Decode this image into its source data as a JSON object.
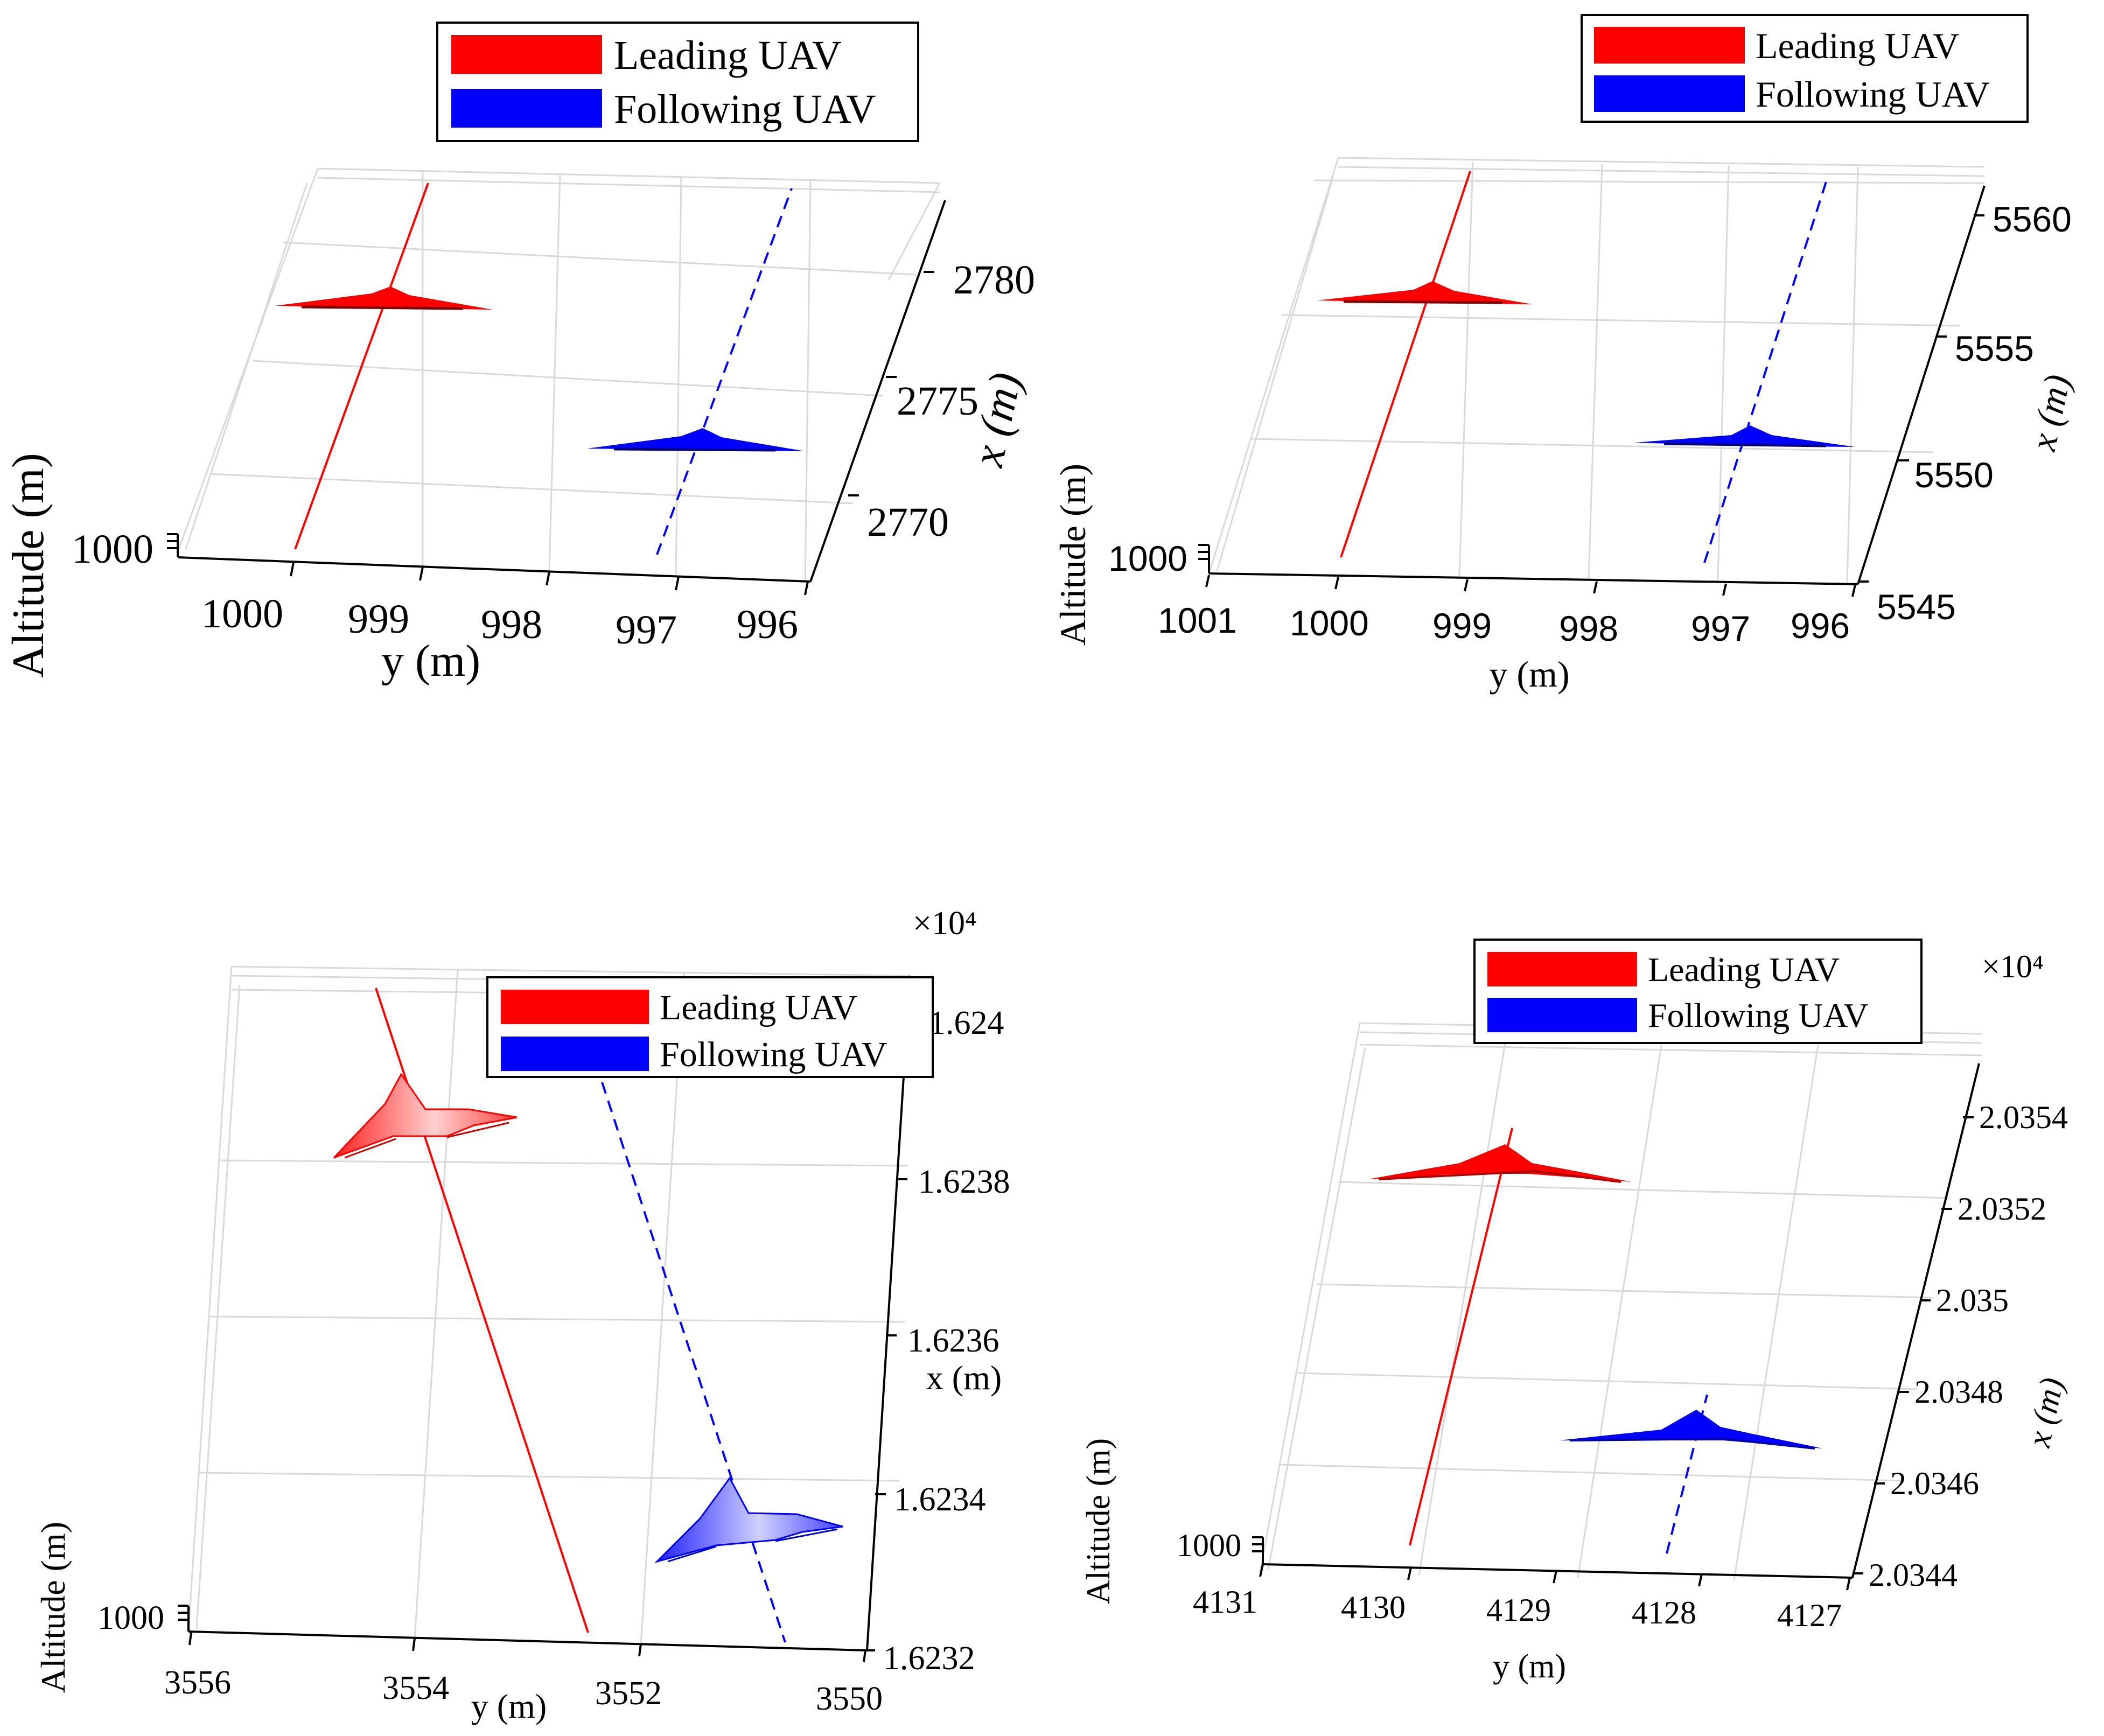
{
  "colors": {
    "lead": "#ff0000",
    "follow": "#0000ff",
    "grid": "#d9d9d9",
    "axis": "#000000"
  },
  "chart_data": [
    {
      "type": "line",
      "view": "3d",
      "legend": {
        "placement": "top",
        "entries": [
          "Leading UAV",
          "Following UAV"
        ]
      },
      "xlabel": "y (m)",
      "ylabel": "x (m)",
      "zlabel": "Altitude (m)",
      "y_ticks": [
        "1000",
        "999",
        "998",
        "997",
        "996"
      ],
      "x_ticks": [
        "2770",
        "2775",
        "2780"
      ],
      "z_ticks": [
        "1000"
      ],
      "x_multiplier": "",
      "series": [
        {
          "name": "Leading UAV",
          "style": "solid",
          "color": "#ff0000",
          "y": [
            999.05,
            998.05
          ],
          "x": [
            2768.5,
            2784.5
          ],
          "z": [
            1000,
            1000
          ],
          "uav_at": {
            "y": 998.73,
            "x": 2779.0
          }
        },
        {
          "name": "Following UAV",
          "style": "dashed",
          "color": "#0000ff",
          "y": [
            996.95,
            995.95
          ],
          "x": [
            2768.5,
            2784.5
          ],
          "z": [
            1000,
            1000
          ],
          "uav_at": {
            "y": 996.76,
            "x": 2773.6
          }
        }
      ]
    },
    {
      "type": "line",
      "view": "3d",
      "legend": {
        "placement": "top-right",
        "entries": [
          "Leading UAV",
          "Following UAV"
        ]
      },
      "xlabel": "y (m)",
      "ylabel": "x (m)",
      "zlabel": "Altitude (m)",
      "y_ticks": [
        "1001",
        "1000",
        "999",
        "998",
        "997",
        "996"
      ],
      "x_ticks": [
        "5545",
        "5550",
        "5555",
        "5560"
      ],
      "z_ticks": [
        "1000"
      ],
      "x_multiplier": "",
      "series": [
        {
          "name": "Leading UAV",
          "style": "solid",
          "color": "#ff0000",
          "y": [
            1000.0,
            999.0
          ],
          "x": [
            5547.0,
            5562.5
          ],
          "z": [
            1000,
            1000
          ],
          "uav_at": {
            "y": 999.6,
            "x": 5557.5
          }
        },
        {
          "name": "Following UAV",
          "style": "dashed",
          "color": "#0000ff",
          "y": [
            997.0,
            996.0
          ],
          "x": [
            5547.0,
            5562.5
          ],
          "z": [
            1000,
            1000
          ],
          "uav_at": {
            "y": 996.9,
            "x": 5552.3
          }
        }
      ]
    },
    {
      "type": "line",
      "view": "3d",
      "legend": {
        "placement": "top-right",
        "entries": [
          "Leading UAV",
          "Following UAV"
        ]
      },
      "xlabel": "y (m)",
      "ylabel": "x (m)",
      "zlabel": "Altitude (m)",
      "y_ticks": [
        "3556",
        "3554",
        "3552",
        "3550"
      ],
      "x_ticks": [
        "1.6232",
        "1.6234",
        "1.6236",
        "1.6238",
        "1.624"
      ],
      "z_ticks": [
        "1000"
      ],
      "x_multiplier": "×10⁴",
      "series": [
        {
          "name": "Leading UAV",
          "style": "solid",
          "color": "#ff0000",
          "y": [
            3552.95,
            3554.35
          ],
          "x": [
            1.62322,
            1.62408
          ],
          "z": [
            1000,
            1000
          ],
          "uav_at": {
            "y": 3554.05,
            "x": 1.6239
          }
        },
        {
          "name": "Following UAV",
          "style": "dashed",
          "color": "#0000ff",
          "y": [
            3550.75,
            3552.25
          ],
          "x": [
            1.62322,
            1.62403
          ],
          "z": [
            1000,
            1000
          ],
          "uav_at": {
            "y": 3551.5,
            "x": 1.62348
          }
        }
      ]
    },
    {
      "type": "line",
      "view": "3d",
      "legend": {
        "placement": "top",
        "entries": [
          "Leading UAV",
          "Following UAV"
        ]
      },
      "xlabel": "y (m)",
      "ylabel": "x (m)",
      "zlabel": "Altitude (m)",
      "y_ticks": [
        "4131",
        "4130",
        "4129",
        "4128",
        "4127"
      ],
      "x_ticks": [
        "2.0344",
        "2.0346",
        "2.0348",
        "2.035",
        "2.0352",
        "2.0354"
      ],
      "z_ticks": [
        "1000"
      ],
      "x_multiplier": "×10⁴",
      "series": [
        {
          "name": "Leading UAV",
          "style": "solid",
          "color": "#ff0000",
          "y": [
            4129.85,
            4128.95
          ],
          "x": [
            2.03447,
            2.03527
          ],
          "z": [
            1000,
            1000
          ],
          "uav_at": {
            "y": 4129.05,
            "x": 2.0352
          }
        },
        {
          "name": "Following UAV",
          "style": "dashed",
          "color": "#0000ff",
          "y": [
            4128.25,
            4127.95
          ],
          "x": [
            2.03447,
            2.03481
          ],
          "z": [
            1000,
            1000
          ],
          "uav_at": {
            "y": 4128.0,
            "x": 2.03475
          }
        }
      ]
    }
  ]
}
